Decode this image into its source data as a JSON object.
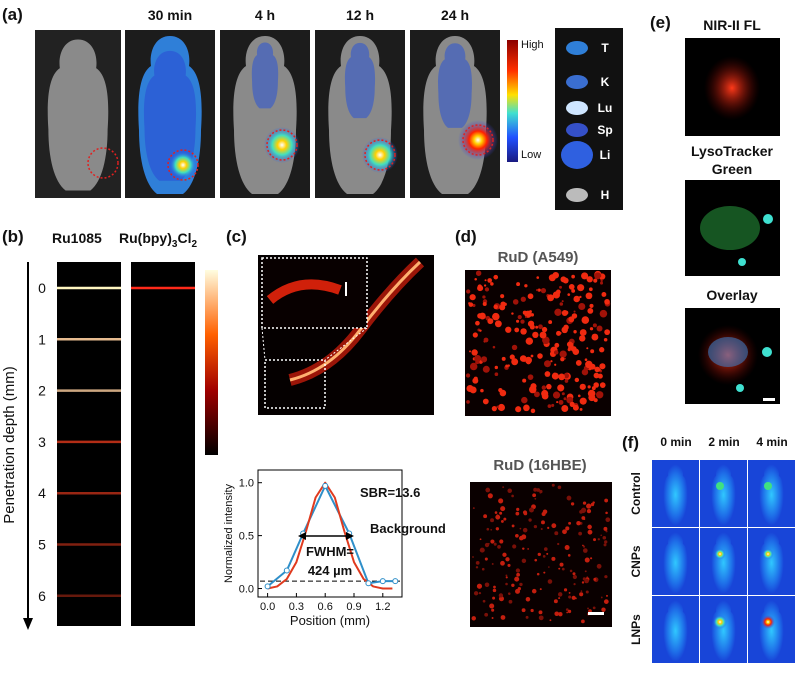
{
  "panel_a": {
    "label": "(a)",
    "times": [
      "30 min",
      "4 h",
      "12 h",
      "24 h"
    ],
    "colorbar": {
      "high": "High",
      "low": "Low"
    },
    "organs": [
      "T",
      "K",
      "Lu",
      "Sp",
      "Li",
      "H"
    ]
  },
  "panel_b": {
    "label": "(b)",
    "column_1": "Ru1085",
    "column_2_parts": [
      "Ru(bpy)",
      "3",
      "Cl",
      "2"
    ],
    "axis_label": "Penetration depth (mm)",
    "depth_ticks": [
      0,
      1,
      2,
      3,
      4,
      5,
      6
    ]
  },
  "panel_c": {
    "label": "(c)",
    "plot": {
      "type": "line",
      "x_label": "Position (mm)",
      "y_label": "Normalized intensity",
      "xlim": [
        -0.1,
        1.4
      ],
      "ylim": [
        -0.08,
        1.12
      ],
      "xticks": [
        {
          "value": 0,
          "label": "0.0"
        },
        {
          "value": 0.3,
          "label": "0.3"
        },
        {
          "value": 0.6,
          "label": "0.6"
        },
        {
          "value": 0.9,
          "label": "0.9"
        },
        {
          "value": 1.2,
          "label": "1.2"
        }
      ],
      "yticks": [
        {
          "value": 0,
          "label": "0.0"
        },
        {
          "value": 0.5,
          "label": "0.5"
        },
        {
          "value": 1,
          "label": "1.0"
        }
      ],
      "fit": {
        "color": "#e03a1e",
        "x": [
          0,
          0.1,
          0.2,
          0.3,
          0.4,
          0.5,
          0.6,
          0.7,
          0.8,
          0.9,
          1.0,
          1.1,
          1.2,
          1.3
        ],
        "values": [
          0.0,
          0.02,
          0.09,
          0.25,
          0.54,
          0.86,
          1.0,
          0.86,
          0.54,
          0.25,
          0.09,
          0.02,
          0.0,
          0.0
        ]
      },
      "measured": {
        "color": "#2f8fc9",
        "x": [
          0,
          0.2,
          0.37,
          0.6,
          0.85,
          1.05,
          1.2,
          1.33
        ],
        "values": [
          0.02,
          0.17,
          0.52,
          0.97,
          0.52,
          0.05,
          0.07,
          0.07
        ]
      },
      "background_level": 0.07,
      "annotations": [
        "SBR=13.6",
        "Background",
        "FWHM=",
        "424 µm"
      ]
    }
  },
  "panel_d": {
    "label": "(d)",
    "titles": [
      "RuD (A549)",
      "RuD (16HBE)"
    ]
  },
  "panel_e": {
    "label": "(e)",
    "titles": [
      [
        "NIR-II FL"
      ],
      [
        "LysoTracker",
        "Green"
      ],
      [
        "Overlay"
      ]
    ]
  },
  "panel_f": {
    "label": "(f)",
    "times": [
      "0 min",
      "2 min",
      "4 min"
    ],
    "groups": [
      "Control",
      "CNPs",
      "LNPs"
    ]
  }
}
